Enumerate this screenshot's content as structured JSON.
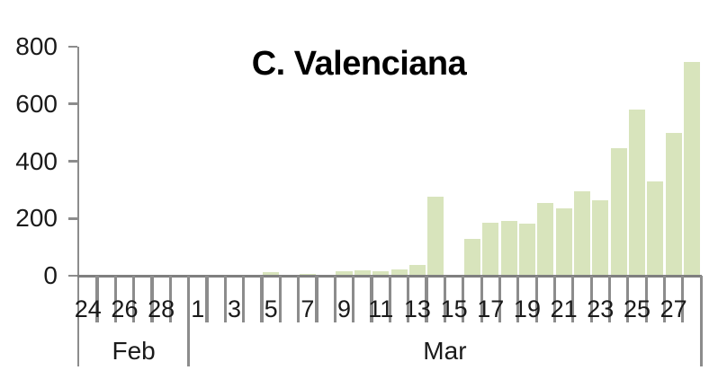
{
  "chart_data": {
    "type": "bar",
    "title": "C. Valenciana",
    "categories": [
      "Feb 24",
      "Feb 25",
      "Feb 26",
      "Feb 27",
      "Feb 28",
      "Feb 29",
      "Mar 1",
      "Mar 2",
      "Mar 3",
      "Mar 4",
      "Mar 5",
      "Mar 6",
      "Mar 7",
      "Mar 8",
      "Mar 9",
      "Mar 10",
      "Mar 11",
      "Mar 12",
      "Mar 13",
      "Mar 14",
      "Mar 15",
      "Mar 16",
      "Mar 17",
      "Mar 18",
      "Mar 19",
      "Mar 20",
      "Mar 21",
      "Mar 22",
      "Mar 23",
      "Mar 24",
      "Mar 25",
      "Mar 26",
      "Mar 27",
      "Mar 28"
    ],
    "values": [
      0,
      0,
      0,
      2,
      0,
      2,
      0,
      0,
      0,
      0,
      12,
      0,
      5,
      0,
      15,
      18,
      15,
      22,
      38,
      276,
      0,
      129,
      185,
      191,
      182,
      254,
      235,
      295,
      263,
      445,
      580,
      330,
      499,
      747
    ],
    "xtick_labels": [
      "24",
      "",
      "26",
      "",
      "28",
      "",
      "1",
      "",
      "3",
      "",
      "5",
      "",
      "7",
      "",
      "9",
      "",
      "11",
      "",
      "13",
      "",
      "15",
      "",
      "17",
      "",
      "19",
      "",
      "21",
      "",
      "23",
      "",
      "25",
      "",
      "27",
      ""
    ],
    "month_groups": [
      {
        "label": "Feb",
        "start": 0,
        "end": 6
      },
      {
        "label": "Mar",
        "start": 6,
        "end": 34
      }
    ],
    "xlabel": "",
    "ylabel": "",
    "ylim": [
      0,
      800
    ],
    "yticks": [
      "0",
      "200",
      "400",
      "600",
      "800"
    ],
    "grid": false,
    "legend": false,
    "bar_color": "#d8e4bc",
    "tick_color": "#8c8c8c",
    "axis_color": "#7f7f7f",
    "text_color": "#1a1a1a"
  }
}
